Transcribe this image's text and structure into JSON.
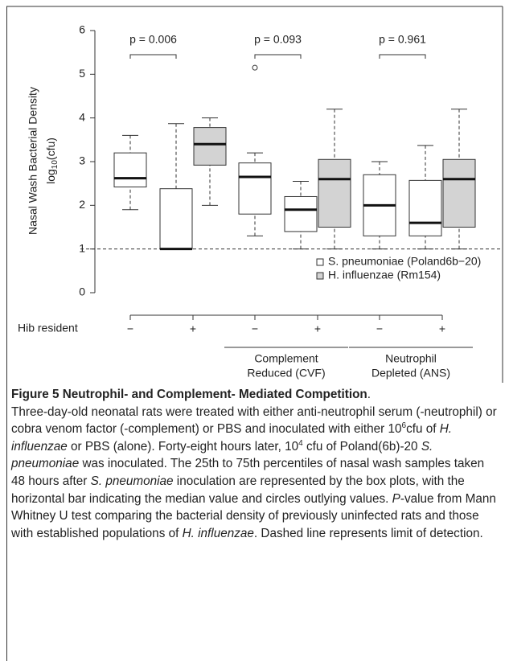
{
  "chart_data": {
    "type": "box",
    "ylabel": "Nasal Wash Bacterial Density",
    "ylabel_unit": [
      "log",
      "10",
      "(cfu)"
    ],
    "xlabel": "Hib resident",
    "categories": [
      "−",
      "+",
      "−",
      "+",
      "−",
      "+"
    ],
    "group_labels": [
      [
        "Complement",
        "Reduced (CVF)"
      ],
      [
        "Neutrophil",
        "Depleted (ANS)"
      ]
    ],
    "annotations": [
      "p = 0.006",
      "p = 0.093",
      "p = 0.961"
    ],
    "ylim": [
      0,
      6
    ],
    "yticks": [
      0,
      1,
      2,
      3,
      4,
      5,
      6
    ],
    "reference_line": 1,
    "legend": "lower right",
    "series": [
      {
        "name": "S. pneumoniae (Poland6b−20)",
        "color": "#ffffff",
        "values": [
          {
            "min": 1.9,
            "q1": 2.42,
            "median": 2.62,
            "q3": 3.2,
            "max": 3.6
          },
          {
            "min": 1.0,
            "q1": 1.0,
            "median": 1.0,
            "q3": 2.38,
            "max": 3.87
          },
          {
            "min": 1.3,
            "q1": 1.8,
            "median": 2.65,
            "q3": 2.97,
            "max": 3.2
          },
          {
            "min": 1.0,
            "q1": 1.4,
            "median": 1.9,
            "q3": 2.2,
            "max": 2.55
          },
          {
            "min": 1.0,
            "q1": 1.3,
            "median": 2.0,
            "q3": 2.7,
            "max": 3.0
          },
          {
            "min": 1.0,
            "q1": 1.3,
            "median": 1.6,
            "q3": 2.57,
            "max": 3.37
          }
        ],
        "outliers": [
          [],
          [],
          [
            5.15
          ],
          [],
          [],
          []
        ]
      },
      {
        "name": "H. influenzae (Rm154)",
        "color": "#d3d3d3",
        "values": [
          null,
          {
            "min": 2.0,
            "q1": 2.92,
            "median": 3.4,
            "q3": 3.78,
            "max": 4.0
          },
          null,
          {
            "min": 1.0,
            "q1": 1.5,
            "median": 2.6,
            "q3": 3.05,
            "max": 4.2
          },
          null,
          {
            "min": 1.0,
            "q1": 1.5,
            "median": 2.6,
            "q3": 3.05,
            "max": 4.2
          }
        ],
        "outliers": [
          [],
          [],
          [],
          [],
          [],
          []
        ]
      }
    ]
  },
  "caption": {
    "title": "Figure 5 Neutrophil- and Complement- Mediated Competition",
    "parts": [
      ".",
      "Three-day-old neonatal rats were treated with either anti-neutrophil serum (-neutrophil) or cobra venom factor (-complement) or PBS and inoculated with either 10",
      "6",
      "cfu of ",
      "H. influenzae",
      " or PBS (alone). Forty-eight hours later, 10",
      "4",
      " cfu of Poland(6b)-20 ",
      "S. pneumoniae",
      " was inoculated. The 25th to 75th percentiles of nasal wash samples taken 48 hours after ",
      "S. pneumoniae",
      " inoculation are represented by the box plots, with the horizontal bar indicating the median value and circles outlying values. ",
      "P",
      "-value from Mann Whitney U test comparing the bacterial density of previously uninfected rats and those with established populations of ",
      "H. influenzae",
      ". Dashed line represents limit of detection."
    ]
  }
}
